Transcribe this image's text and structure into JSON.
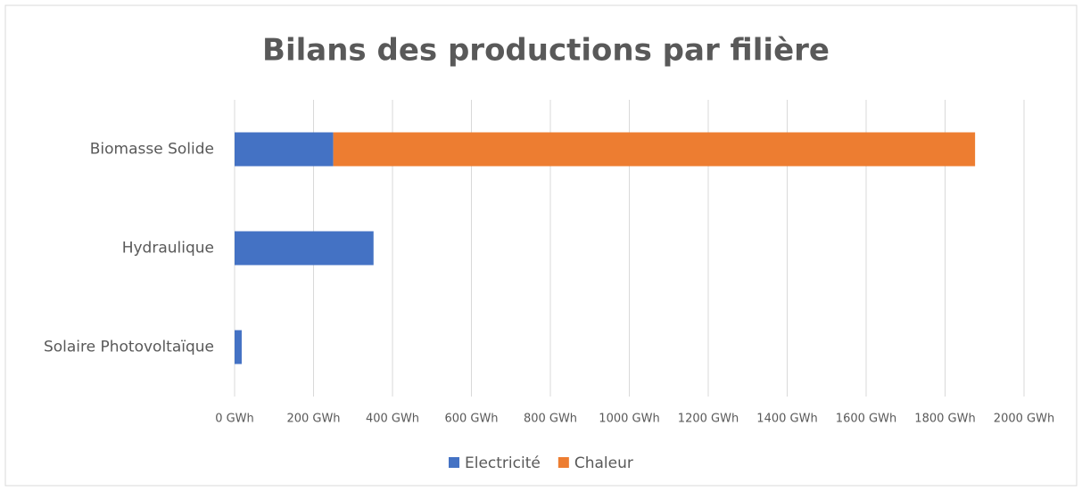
{
  "chart_data": {
    "type": "bar",
    "orientation": "horizontal",
    "stacked": true,
    "title": "Bilans des productions par filière",
    "categories": [
      "Biomasse Solide",
      "Hydraulique",
      "Solaire Photovoltaïque"
    ],
    "series": [
      {
        "name": "Electricité",
        "color": "#4472c4",
        "values": [
          250,
          352,
          18
        ]
      },
      {
        "name": "Chaleur",
        "color": "#ed7d31",
        "values": [
          1626,
          0,
          0
        ]
      }
    ],
    "xlim": [
      0,
      2000
    ],
    "xticks": [
      {
        "value": 0,
        "label": "0 GWh"
      },
      {
        "value": 200,
        "label": "200 GWh"
      },
      {
        "value": 400,
        "label": "400 GWh"
      },
      {
        "value": 600,
        "label": "600 GWh"
      },
      {
        "value": 800,
        "label": "800 GWh"
      },
      {
        "value": 1000,
        "label": "1000 GWh"
      },
      {
        "value": 1200,
        "label": "1200 GWh"
      },
      {
        "value": 1400,
        "label": "1400 GWh"
      },
      {
        "value": 1600,
        "label": "1600 GWh"
      },
      {
        "value": 1800,
        "label": "1800 GWh"
      },
      {
        "value": 2000,
        "label": "2000 GWh"
      }
    ],
    "grid": true,
    "legend": "bottom"
  }
}
